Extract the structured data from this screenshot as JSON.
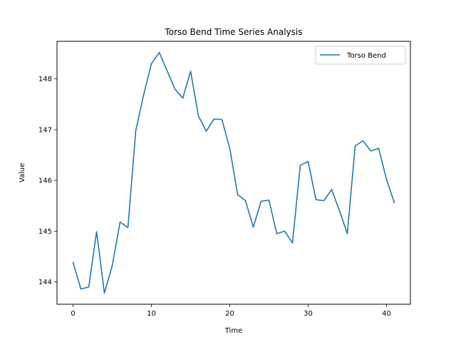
{
  "chart_data": {
    "type": "line",
    "title": "Torso Bend Time Series Analysis",
    "xlabel": "Time",
    "ylabel": "Value",
    "xlim": [
      -2.05,
      43.05
    ],
    "ylim": [
      143.56,
      148.74
    ],
    "xticks": [
      0,
      10,
      20,
      30,
      40
    ],
    "yticks": [
      144,
      145,
      146,
      147,
      148
    ],
    "grid": false,
    "legend_position": "top-right",
    "series": [
      {
        "name": "Torso Bend",
        "color": "#1f77b4",
        "x": [
          0,
          1,
          2,
          3,
          4,
          5,
          6,
          7,
          8,
          9,
          10,
          11,
          12,
          13,
          14,
          15,
          16,
          17,
          18,
          19,
          20,
          21,
          22,
          23,
          24,
          25,
          26,
          27,
          28,
          29,
          30,
          31,
          32,
          33,
          34,
          35,
          36,
          37,
          38,
          39,
          40,
          41
        ],
        "values": [
          144.38,
          143.86,
          143.9,
          144.99,
          143.78,
          144.32,
          145.18,
          145.07,
          146.98,
          147.68,
          148.3,
          148.52,
          148.16,
          147.8,
          147.62,
          148.15,
          147.27,
          146.97,
          147.21,
          147.2,
          146.63,
          145.72,
          145.6,
          145.08,
          145.59,
          145.61,
          144.95,
          145.0,
          144.77,
          146.3,
          146.37,
          145.62,
          145.6,
          145.82,
          145.4,
          144.95,
          146.68,
          146.78,
          146.58,
          146.63,
          146.02,
          145.56
        ]
      }
    ]
  }
}
